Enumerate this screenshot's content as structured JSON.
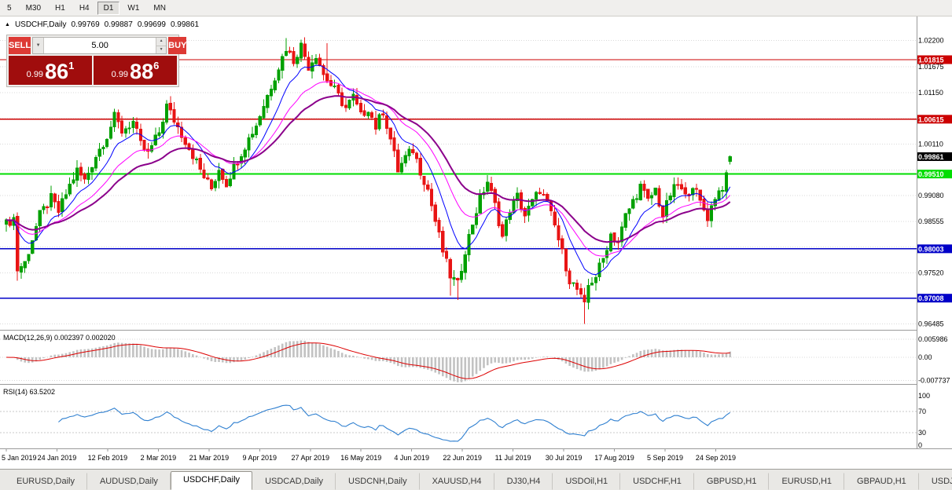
{
  "toolbar": {
    "timeframes": [
      "5",
      "M30",
      "H1",
      "H4",
      "D1",
      "W1",
      "MN"
    ],
    "active_timeframe": "D1"
  },
  "chart_header": {
    "symbol": "USDCHF,Daily",
    "open": "0.99769",
    "high": "0.99887",
    "low": "0.99699",
    "close": "0.99861"
  },
  "trade_panel": {
    "sell_label": "SELL",
    "buy_label": "BUY",
    "volume": "5.00",
    "sell_price": {
      "small": "0.99",
      "big": "86",
      "sup": "1"
    },
    "buy_price": {
      "small": "0.99",
      "big": "88",
      "sup": "6"
    }
  },
  "icons": {
    "tick_up": "▲",
    "dropdown": "▼",
    "spin_up": "▲",
    "spin_down": "▼"
  },
  "price_scale": {
    "ticks": [
      {
        "price": 1.022,
        "label": "1.02200"
      },
      {
        "price": 1.01675,
        "label": "1.01675"
      },
      {
        "price": 1.0115,
        "label": "1.01150"
      },
      {
        "price": 1.0063,
        "label": ""
      },
      {
        "price": 1.0011,
        "label": "1.00110"
      },
      {
        "price": 0.99595,
        "label": ""
      },
      {
        "price": 0.9908,
        "label": "0.99080"
      },
      {
        "price": 0.98555,
        "label": "0.98555"
      },
      {
        "price": 0.98038,
        "label": ""
      },
      {
        "price": 0.9752,
        "label": "0.97520"
      },
      {
        "price": 0.97003,
        "label": ""
      },
      {
        "price": 0.96485,
        "label": "0.96485"
      }
    ]
  },
  "tab_bar": {
    "tabs": [
      "EURUSD,Daily",
      "AUDUSD,Daily",
      "USDCHF,Daily",
      "USDCAD,Daily",
      "USDCNH,Daily",
      "XAUUSD,H4",
      "DJ30,H4",
      "USDOil,H1",
      "USDCHF,H1",
      "GBPUSD,H1",
      "EURUSD,H1",
      "GBPAUD,H1",
      "USDJP"
    ],
    "active": "USDCHF,Daily"
  },
  "colors": {
    "bull": "#00a000",
    "bear": "#e81414",
    "ma_fast": "#0000ff",
    "ma_mid": "#ff00ff",
    "ma_slow": "#8b008b",
    "macd_hist": "#c2c2c2",
    "macd_signal": "#dd0000",
    "rsi_line": "#2e7fd0",
    "grid": "#d9d9d9",
    "price_label_bg": "#000000"
  },
  "chart_data": {
    "type": "candlestick",
    "symbol": "USDCHF",
    "timeframe": "Daily",
    "last_candle": {
      "open": 0.99769,
      "high": 0.99887,
      "low": 0.99699,
      "close": 0.99861
    },
    "current_price_label": "0.99861",
    "num_candles": 195,
    "price_range": {
      "top": 1.0267,
      "bottom": 0.9637
    },
    "waypoints": [
      [
        0,
        0.985
      ],
      [
        2,
        0.9862
      ],
      [
        3,
        0.9758
      ],
      [
        5,
        0.9772
      ],
      [
        9,
        0.9868
      ],
      [
        12,
        0.9902
      ],
      [
        14,
        0.9875
      ],
      [
        17,
        0.9928
      ],
      [
        19,
        0.9958
      ],
      [
        21,
        0.9938
      ],
      [
        24,
        0.9988
      ],
      [
        27,
        1.0028
      ],
      [
        29,
        1.0066
      ],
      [
        31,
        1.0038
      ],
      [
        34,
        1.0056
      ],
      [
        36,
        1.001
      ],
      [
        38,
        0.9992
      ],
      [
        41,
        1.0035
      ],
      [
        43,
        1.0088
      ],
      [
        45,
        1.006
      ],
      [
        48,
        1.0018
      ],
      [
        50,
        0.999
      ],
      [
        53,
        0.9945
      ],
      [
        55,
        0.9922
      ],
      [
        57,
        0.9962
      ],
      [
        59,
        0.9932
      ],
      [
        61,
        0.9966
      ],
      [
        64,
        1.0008
      ],
      [
        67,
        1.005
      ],
      [
        69,
        1.009
      ],
      [
        72,
        1.0148
      ],
      [
        75,
        1.0205
      ],
      [
        77,
        1.018
      ],
      [
        79,
        1.021
      ],
      [
        81,
        1.0168
      ],
      [
        83,
        1.0192
      ],
      [
        85,
        1.0152
      ],
      [
        88,
        1.012
      ],
      [
        91,
        1.0084
      ],
      [
        93,
        1.0106
      ],
      [
        95,
        1.0068
      ],
      [
        97,
        1.0084
      ],
      [
        99,
        1.0046
      ],
      [
        101,
        1.0078
      ],
      [
        103,
        1.0022
      ],
      [
        105,
        0.9958
      ],
      [
        107,
        0.9984
      ],
      [
        109,
        1.0
      ],
      [
        111,
        0.9958
      ],
      [
        113,
        0.992
      ],
      [
        115,
        0.9856
      ],
      [
        117,
        0.9796
      ],
      [
        119,
        0.9746
      ],
      [
        121,
        0.9728
      ],
      [
        123,
        0.9798
      ],
      [
        125,
        0.9852
      ],
      [
        127,
        0.9902
      ],
      [
        129,
        0.9936
      ],
      [
        131,
        0.9888
      ],
      [
        133,
        0.9824
      ],
      [
        135,
        0.988
      ],
      [
        137,
        0.9906
      ],
      [
        139,
        0.9868
      ],
      [
        141,
        0.9894
      ],
      [
        143,
        0.992
      ],
      [
        145,
        0.989
      ],
      [
        147,
        0.9846
      ],
      [
        149,
        0.9792
      ],
      [
        151,
        0.9738
      ],
      [
        153,
        0.9718
      ],
      [
        155,
        0.9684
      ],
      [
        156,
        0.9726
      ],
      [
        158,
        0.9746
      ],
      [
        160,
        0.978
      ],
      [
        162,
        0.983
      ],
      [
        164,
        0.9814
      ],
      [
        166,
        0.9866
      ],
      [
        168,
        0.9896
      ],
      [
        170,
        0.9926
      ],
      [
        172,
        0.9896
      ],
      [
        174,
        0.992
      ],
      [
        176,
        0.9866
      ],
      [
        178,
        0.991
      ],
      [
        180,
        0.993
      ],
      [
        182,
        0.9904
      ],
      [
        184,
        0.993
      ],
      [
        186,
        0.9894
      ],
      [
        188,
        0.9864
      ],
      [
        190,
        0.9906
      ],
      [
        192,
        0.9926
      ],
      [
        193,
        0.9944
      ],
      [
        194,
        0.99861
      ]
    ],
    "extreme_highs": [
      [
        75,
        1.0225
      ],
      [
        79,
        1.0222
      ],
      [
        86,
        1.0215
      ]
    ],
    "extreme_lows": [
      [
        3,
        0.9736
      ],
      [
        119,
        0.9706
      ],
      [
        121,
        0.9697
      ],
      [
        155,
        0.9649
      ]
    ],
    "x_labels": [
      "5 Jan 2019",
      "24 Jan 2019",
      "12 Feb 2019",
      "2 Mar 2019",
      "21 Mar 2019",
      "9 Apr 2019",
      "27 Apr 2019",
      "16 May 2019",
      "4 Jun 2019",
      "22 Jun 2019",
      "11 Jul 2019",
      "30 Jul 2019",
      "17 Aug 2019",
      "5 Sep 2019",
      "24 Sep 2019"
    ],
    "hlines": [
      {
        "price": 1.01815,
        "label": "1.01815",
        "color": "#cc0000",
        "width": 1.2
      },
      {
        "price": 1.00615,
        "label": "1.00615",
        "color": "#cc0000",
        "width": 1.2
      },
      {
        "price": 0.9951,
        "label": "0.99510",
        "color": "#00dd00",
        "width": 1.8
      },
      {
        "price": 0.98003,
        "label": "0.98003",
        "color": "#0000c8",
        "width": 1.2
      },
      {
        "price": 0.97008,
        "label": "0.97008",
        "color": "#0000c8",
        "width": 1.2
      }
    ],
    "moving_averages": [
      {
        "period": 10,
        "color": "#0000ff",
        "width": 1
      },
      {
        "period": 21,
        "color": "#ff00ff",
        "width": 1
      },
      {
        "period": 34,
        "color": "#8b008b",
        "width": 2
      }
    ],
    "macd": {
      "label": "MACD(12,26,9) 0.002397 0.002020",
      "fast": 12,
      "slow": 26,
      "signal": 9,
      "ticks": [
        {
          "value": 0.005986,
          "label": "0.005986"
        },
        {
          "value": 0,
          "label": "0.00"
        },
        {
          "value": -0.007737,
          "label": "-0.007737"
        }
      ]
    },
    "rsi": {
      "label": "RSI(14) 63.5202",
      "period": 14,
      "levels": [
        70,
        30
      ],
      "ticks": [
        {
          "value": 100,
          "label": "100"
        },
        {
          "value": 70,
          "label": "70"
        },
        {
          "value": 30,
          "label": "30"
        },
        {
          "value": 0,
          "label": "0"
        }
      ]
    }
  }
}
